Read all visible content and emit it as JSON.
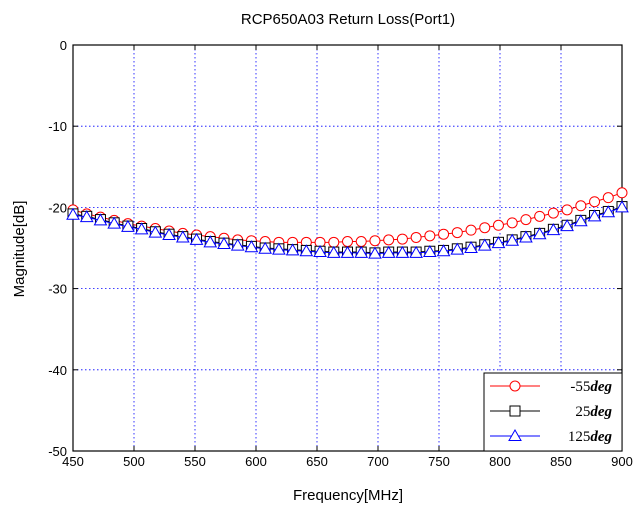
{
  "chart_data": {
    "type": "line",
    "title": "RCP650A03 Return Loss(Port1)",
    "xlabel": "Frequency[MHz]",
    "ylabel": "Magnitude[dB]",
    "xlim": [
      450,
      900
    ],
    "ylim": [
      -50,
      0
    ],
    "xticks": [
      450,
      500,
      550,
      600,
      650,
      700,
      750,
      800,
      850,
      900
    ],
    "yticks": [
      0,
      -10,
      -20,
      -30,
      -40,
      -50
    ],
    "grid": true,
    "legend_position": "bottom-right",
    "series": [
      {
        "name": "-55",
        "unit": "deg",
        "color": "#ff0000",
        "marker": "circle",
        "x": [
          450,
          461.25,
          472.5,
          483.75,
          495,
          506.25,
          517.5,
          528.75,
          540,
          551.25,
          562.5,
          573.75,
          585,
          596.25,
          607.5,
          618.75,
          630,
          641.25,
          652.5,
          663.75,
          675,
          686.25,
          697.5,
          708.75,
          720,
          731.25,
          742.5,
          753.75,
          765,
          776.25,
          787.5,
          798.75,
          810,
          821.25,
          832.5,
          843.75,
          855,
          866.25,
          877.5,
          888.75,
          900
        ],
        "y": [
          -20.3,
          -20.8,
          -21.2,
          -21.6,
          -22.0,
          -22.3,
          -22.6,
          -22.9,
          -23.2,
          -23.4,
          -23.6,
          -23.8,
          -24.0,
          -24.1,
          -24.2,
          -24.3,
          -24.3,
          -24.3,
          -24.3,
          -24.3,
          -24.2,
          -24.2,
          -24.1,
          -24.0,
          -23.9,
          -23.7,
          -23.5,
          -23.3,
          -23.1,
          -22.8,
          -22.5,
          -22.2,
          -21.9,
          -21.5,
          -21.1,
          -20.7,
          -20.3,
          -19.8,
          -19.3,
          -18.8,
          -18.2
        ]
      },
      {
        "name": "25",
        "unit": "deg",
        "color": "#000000",
        "marker": "square",
        "x": [
          450,
          461.25,
          472.5,
          483.75,
          495,
          506.25,
          517.5,
          528.75,
          540,
          551.25,
          562.5,
          573.75,
          585,
          596.25,
          607.5,
          618.75,
          630,
          641.25,
          652.5,
          663.75,
          675,
          686.25,
          697.5,
          708.75,
          720,
          731.25,
          742.5,
          753.75,
          765,
          776.25,
          787.5,
          798.75,
          810,
          821.25,
          832.5,
          843.75,
          855,
          866.25,
          877.5,
          888.75,
          900
        ],
        "y": [
          -20.8,
          -21.1,
          -21.5,
          -21.9,
          -22.3,
          -22.6,
          -23.0,
          -23.3,
          -23.6,
          -23.9,
          -24.2,
          -24.4,
          -24.6,
          -24.8,
          -25.0,
          -25.1,
          -25.2,
          -25.3,
          -25.4,
          -25.5,
          -25.5,
          -25.5,
          -25.6,
          -25.5,
          -25.5,
          -25.5,
          -25.4,
          -25.3,
          -25.1,
          -24.9,
          -24.6,
          -24.3,
          -24.0,
          -23.6,
          -23.2,
          -22.7,
          -22.2,
          -21.6,
          -21.0,
          -20.5,
          -19.9
        ]
      },
      {
        "name": "125",
        "unit": "deg",
        "color": "#0000ff",
        "marker": "triangle",
        "x": [
          450,
          461.25,
          472.5,
          483.75,
          495,
          506.25,
          517.5,
          528.75,
          540,
          551.25,
          562.5,
          573.75,
          585,
          596.25,
          607.5,
          618.75,
          630,
          641.25,
          652.5,
          663.75,
          675,
          686.25,
          697.5,
          708.75,
          720,
          731.25,
          742.5,
          753.75,
          765,
          776.25,
          787.5,
          798.75,
          810,
          821.25,
          832.5,
          843.75,
          855,
          866.25,
          877.5,
          888.75,
          900
        ],
        "y": [
          -20.9,
          -21.2,
          -21.6,
          -22.0,
          -22.4,
          -22.7,
          -23.1,
          -23.4,
          -23.7,
          -24.0,
          -24.3,
          -24.5,
          -24.7,
          -24.9,
          -25.1,
          -25.2,
          -25.3,
          -25.4,
          -25.5,
          -25.6,
          -25.6,
          -25.6,
          -25.7,
          -25.6,
          -25.6,
          -25.6,
          -25.5,
          -25.4,
          -25.2,
          -25.0,
          -24.7,
          -24.4,
          -24.1,
          -23.7,
          -23.3,
          -22.8,
          -22.3,
          -21.7,
          -21.1,
          -20.6,
          -20.0
        ]
      }
    ]
  }
}
